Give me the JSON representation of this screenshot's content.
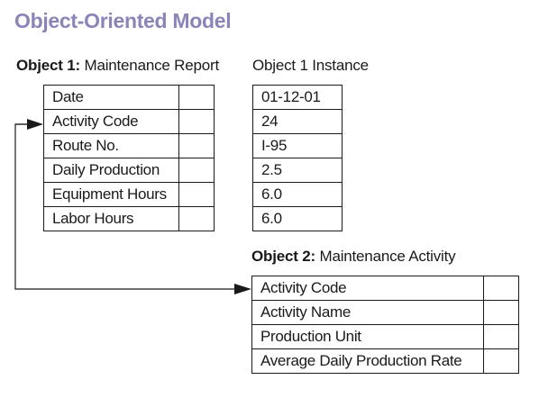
{
  "title": "Object-Oriented Model",
  "object1": {
    "label_bold": "Object 1:",
    "label_rest": "Maintenance Report",
    "fields": [
      "Date",
      "Activity Code",
      "Route No.",
      "Daily Production",
      "Equipment Hours",
      "Labor Hours"
    ]
  },
  "instance": {
    "label": "Object 1 Instance",
    "values": [
      "01-12-01",
      "24",
      "I-95",
      "2.5",
      "6.0",
      "6.0"
    ]
  },
  "object2": {
    "label_bold": "Object 2:",
    "label_rest": "Maintenance Activity",
    "fields": [
      "Activity Code",
      "Activity Name",
      "Production Unit",
      "Average Daily Production Rate"
    ]
  }
}
